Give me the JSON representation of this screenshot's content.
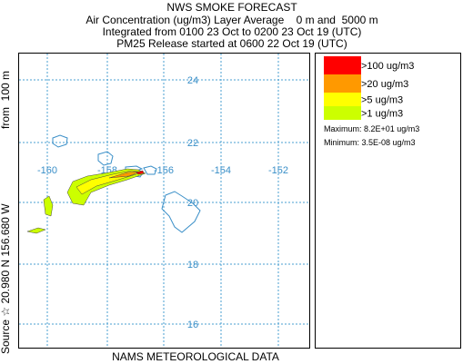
{
  "header": {
    "title": "NWS SMOKE FORECAST",
    "lines": [
      "Air Concentration (ug/m3) Layer Average    0 m and  5000 m",
      "Integrated from 0100 23 Oct to 0200 23 Oct 19 (UTC)",
      "PM25 Release started at 0600 22 Oct 19 (UTC)"
    ]
  },
  "map": {
    "lat_labels": [
      "24",
      "22",
      "20",
      "18",
      "16"
    ],
    "lon_labels": [
      "-160",
      "-158",
      "-156",
      "-154",
      "-152"
    ]
  },
  "legend": {
    "items": [
      {
        "label": ">100 ug/m3",
        "color": "#ff0000"
      },
      {
        "label": ">20 ug/m3",
        "color": "#ff9900"
      },
      {
        "label": ">5 ug/m3",
        "color": "#ffff00"
      },
      {
        "label": ">1 ug/m3",
        "color": "#ccff00"
      }
    ],
    "maximum": "Maximum: 8.2E+01 ug/m3",
    "minimum": "Minimum: 3.5E-08 ug/m3"
  },
  "side_label": {
    "source": "Source ☆ 20.980 N 156.680 W",
    "height": "from  100 m"
  },
  "footer": "NAMS METEOROLOGICAL DATA"
}
